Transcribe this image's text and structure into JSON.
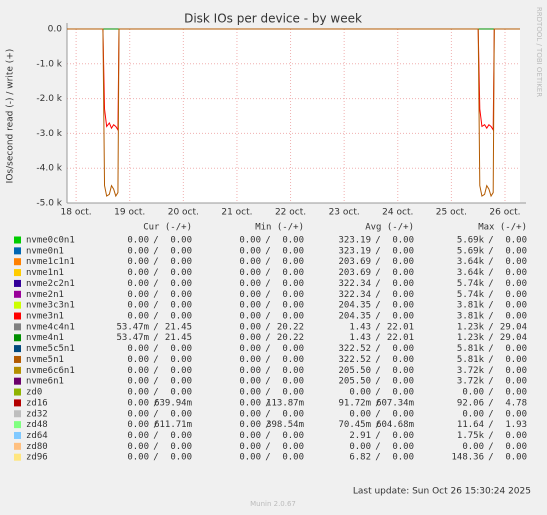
{
  "chart_data": {
    "type": "line",
    "title": "Disk IOs per device - by week",
    "y_label": "IOs/second read (-) / write (+)",
    "side_text": "RRDTOOL / TOBI OETIKER",
    "footer": "Munin 2.0.67",
    "last_update": "Last update: Sun Oct 26 15:30:24 2025",
    "columns": [
      "Cur (-/+)",
      "Min (-/+)",
      "Avg (-/+)",
      "Max (-/+)"
    ],
    "ylim": [
      -5000,
      0
    ],
    "yticks": [
      {
        "value": 0,
        "label": "0.0"
      },
      {
        "value": -1000,
        "label": "-1.0 k"
      },
      {
        "value": -2000,
        "label": "-2.0 k"
      },
      {
        "value": -3000,
        "label": "-3.0 k"
      },
      {
        "value": -4000,
        "label": "-4.0 k"
      },
      {
        "value": -5000,
        "label": "-5.0 k"
      }
    ],
    "xlim": [
      17.83,
      26.28
    ],
    "xticks": [
      {
        "value": 18,
        "label": "18 oct."
      },
      {
        "value": 19,
        "label": "19 oct."
      },
      {
        "value": 20,
        "label": "20 oct."
      },
      {
        "value": 21,
        "label": "21 oct."
      },
      {
        "value": 22,
        "label": "22 oct."
      },
      {
        "value": 23,
        "label": "23 oct."
      },
      {
        "value": 24,
        "label": "24 oct."
      },
      {
        "value": 25,
        "label": "25 oct."
      },
      {
        "value": 26,
        "label": "26 oct."
      }
    ],
    "grid": true,
    "x": [
      17.83,
      18.5,
      18.53,
      18.57,
      18.62,
      18.66,
      18.7,
      18.74,
      18.78,
      18.8,
      25.5,
      25.53,
      25.57,
      25.62,
      25.66,
      25.7,
      25.74,
      25.78,
      25.8,
      26.28
    ],
    "series": [
      {
        "name": "nvme0c0n1",
        "color": "#00cc00",
        "cur": [
          "0.00",
          "0.00"
        ],
        "min": [
          "0.00",
          "0.00"
        ],
        "avg": [
          "323.19",
          "0.00"
        ],
        "max": [
          "5.69k",
          "0.00"
        ]
      },
      {
        "name": "nvme0n1",
        "color": "#0066b3",
        "cur": [
          "0.00",
          "0.00"
        ],
        "min": [
          "0.00",
          "0.00"
        ],
        "avg": [
          "323.19",
          "0.00"
        ],
        "max": [
          "5.69k",
          "0.00"
        ]
      },
      {
        "name": "nvme1c1n1",
        "color": "#ff8000",
        "cur": [
          "0.00",
          "0.00"
        ],
        "min": [
          "0.00",
          "0.00"
        ],
        "avg": [
          "203.69",
          "0.00"
        ],
        "max": [
          "3.64k",
          "0.00"
        ]
      },
      {
        "name": "nvme1n1",
        "color": "#ffcc00",
        "cur": [
          "0.00",
          "0.00"
        ],
        "min": [
          "0.00",
          "0.00"
        ],
        "avg": [
          "203.69",
          "0.00"
        ],
        "max": [
          "3.64k",
          "0.00"
        ]
      },
      {
        "name": "nvme2c2n1",
        "color": "#330099",
        "cur": [
          "0.00",
          "0.00"
        ],
        "min": [
          "0.00",
          "0.00"
        ],
        "avg": [
          "322.34",
          "0.00"
        ],
        "max": [
          "5.74k",
          "0.00"
        ]
      },
      {
        "name": "nvme2n1",
        "color": "#990099",
        "cur": [
          "0.00",
          "0.00"
        ],
        "min": [
          "0.00",
          "0.00"
        ],
        "avg": [
          "322.34",
          "0.00"
        ],
        "max": [
          "5.74k",
          "0.00"
        ]
      },
      {
        "name": "nvme3c3n1",
        "color": "#ccff00",
        "cur": [
          "0.00",
          "0.00"
        ],
        "min": [
          "0.00",
          "0.00"
        ],
        "avg": [
          "204.35",
          "0.00"
        ],
        "max": [
          "3.81k",
          "0.00"
        ]
      },
      {
        "name": "nvme3n1",
        "color": "#ff0000",
        "cur": [
          "0.00",
          "0.00"
        ],
        "min": [
          "0.00",
          "0.00"
        ],
        "avg": [
          "204.35",
          "0.00"
        ],
        "max": [
          "3.81k",
          "0.00"
        ],
        "values": [
          0,
          0,
          -2300,
          -2800,
          -2700,
          -2850,
          -2750,
          -2800,
          -2900,
          0,
          0,
          -2300,
          -2800,
          -2750,
          -2850,
          -2750,
          -2800,
          -2900,
          0,
          0
        ]
      },
      {
        "name": "nvme4c4n1",
        "color": "#808080",
        "cur": [
          "53.47m",
          "21.45"
        ],
        "min": [
          "0.00",
          "20.22"
        ],
        "avg": [
          "1.43",
          "22.01"
        ],
        "max": [
          "1.23k",
          "29.04"
        ]
      },
      {
        "name": "nvme4n1",
        "color": "#008f00",
        "cur": [
          "53.47m",
          "21.45"
        ],
        "min": [
          "0.00",
          "20.22"
        ],
        "avg": [
          "1.43",
          "22.01"
        ],
        "max": [
          "1.23k",
          "29.04"
        ],
        "values": [
          0,
          0,
          0,
          0,
          0,
          0,
          0,
          0,
          0,
          0,
          0,
          0,
          0,
          0,
          0,
          0,
          0,
          0,
          0,
          0
        ]
      },
      {
        "name": "nvme5c5n1",
        "color": "#00487d",
        "cur": [
          "0.00",
          "0.00"
        ],
        "min": [
          "0.00",
          "0.00"
        ],
        "avg": [
          "322.52",
          "0.00"
        ],
        "max": [
          "5.81k",
          "0.00"
        ]
      },
      {
        "name": "nvme5n1",
        "color": "#b35a00",
        "cur": [
          "0.00",
          "0.00"
        ],
        "min": [
          "0.00",
          "0.00"
        ],
        "avg": [
          "322.52",
          "0.00"
        ],
        "max": [
          "5.81k",
          "0.00"
        ],
        "values": [
          0,
          0,
          -4500,
          -4800,
          -4750,
          -4500,
          -4600,
          -4800,
          -4700,
          0,
          0,
          -4500,
          -4800,
          -4750,
          -4500,
          -4600,
          -4800,
          -4700,
          0,
          0
        ]
      },
      {
        "name": "nvme6c6n1",
        "color": "#b38f00",
        "cur": [
          "0.00",
          "0.00"
        ],
        "min": [
          "0.00",
          "0.00"
        ],
        "avg": [
          "205.50",
          "0.00"
        ],
        "max": [
          "3.72k",
          "0.00"
        ]
      },
      {
        "name": "nvme6n1",
        "color": "#6b006b",
        "cur": [
          "0.00",
          "0.00"
        ],
        "min": [
          "0.00",
          "0.00"
        ],
        "avg": [
          "205.50",
          "0.00"
        ],
        "max": [
          "3.72k",
          "0.00"
        ]
      },
      {
        "name": "zd0",
        "color": "#8fb300",
        "cur": [
          "0.00",
          "0.00"
        ],
        "min": [
          "0.00",
          "0.00"
        ],
        "avg": [
          "0.00",
          "0.00"
        ],
        "max": [
          "0.00",
          "0.00"
        ]
      },
      {
        "name": "zd16",
        "color": "#b30000",
        "cur": [
          "0.00",
          "639.94m"
        ],
        "min": [
          "0.00",
          "113.87m"
        ],
        "avg": [
          "91.72m",
          "607.34m"
        ],
        "max": [
          "92.06",
          "4.78"
        ]
      },
      {
        "name": "zd32",
        "color": "#bebebe",
        "cur": [
          "0.00",
          "0.00"
        ],
        "min": [
          "0.00",
          "0.00"
        ],
        "avg": [
          "0.00",
          "0.00"
        ],
        "max": [
          "0.00",
          "0.00"
        ]
      },
      {
        "name": "zd48",
        "color": "#80ff80",
        "cur": [
          "0.00",
          "611.71m"
        ],
        "min": [
          "0.00",
          "398.54m"
        ],
        "avg": [
          "70.45m",
          "604.68m"
        ],
        "max": [
          "11.64",
          "1.93"
        ]
      },
      {
        "name": "zd64",
        "color": "#80c9ff",
        "cur": [
          "0.00",
          "0.00"
        ],
        "min": [
          "0.00",
          "0.00"
        ],
        "avg": [
          "2.91",
          "0.00"
        ],
        "max": [
          "1.75k",
          "0.00"
        ]
      },
      {
        "name": "zd80",
        "color": "#ffc080",
        "cur": [
          "0.00",
          "0.00"
        ],
        "min": [
          "0.00",
          "0.00"
        ],
        "avg": [
          "0.00",
          "0.00"
        ],
        "max": [
          "0.00",
          "0.00"
        ]
      },
      {
        "name": "zd96",
        "color": "#ffe680",
        "cur": [
          "0.00",
          "0.00"
        ],
        "min": [
          "0.00",
          "0.00"
        ],
        "avg": [
          "6.82",
          "0.00"
        ],
        "max": [
          "148.36",
          "0.00"
        ]
      }
    ]
  }
}
